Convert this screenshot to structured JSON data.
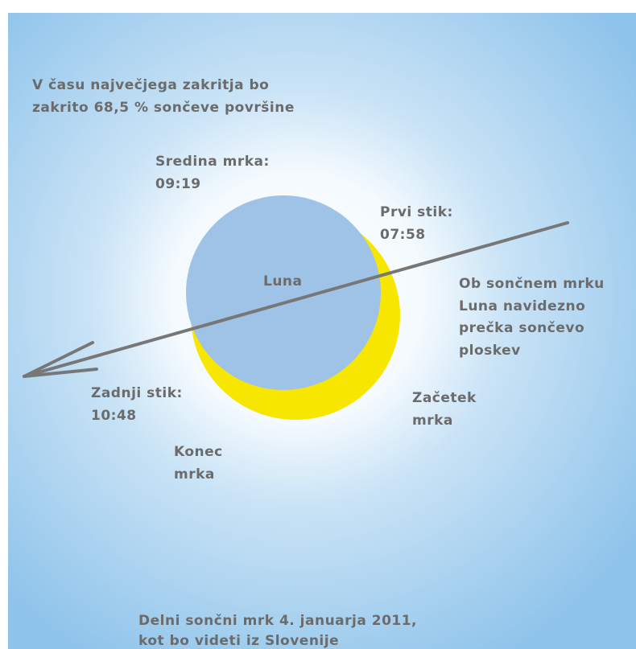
{
  "title": {
    "lines": [
      "Delni sončni mrk 4. januarja 2011,",
      "kot bo videti iz Slovenije"
    ]
  },
  "coverage_note": {
    "lines": [
      "V času največjega zakritja bo",
      "zakrito 68,5 % sončeve površine"
    ]
  },
  "labels": {
    "mid": {
      "lines": [
        "Sredina mrka:",
        "09:19"
      ]
    },
    "first_contact": {
      "lines": [
        "Prvi stik:",
        "07:58"
      ]
    },
    "moon": "Luna",
    "explanation": {
      "lines": [
        "Ob sončnem mrku",
        "Luna navidezno",
        "prečka sončevo",
        "ploskev"
      ]
    },
    "last_contact": {
      "lines": [
        "Zadnji stik:",
        "10:48"
      ]
    },
    "start": {
      "lines": [
        "Začetek",
        "mrka"
      ]
    },
    "end": {
      "lines": [
        "Konec",
        "mrka"
      ]
    }
  }
}
